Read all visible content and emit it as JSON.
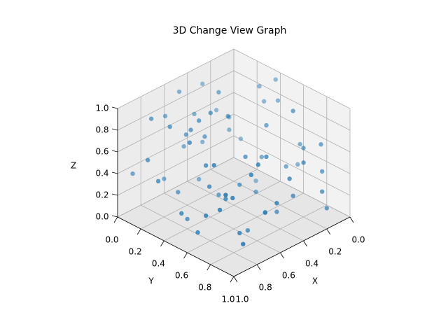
{
  "chart_data": {
    "type": "scatter3d",
    "title": "3D Change View Graph",
    "xlabel": "X",
    "ylabel": "Y",
    "zlabel": "Z",
    "xlim": [
      0,
      1
    ],
    "ylim": [
      0,
      1
    ],
    "zlim": [
      0,
      1
    ],
    "xticks": [
      {
        "value": 0,
        "label": "0.0"
      },
      {
        "value": 0.2,
        "label": "0.2"
      },
      {
        "value": 0.4,
        "label": "0.4"
      },
      {
        "value": 0.6,
        "label": "0.6"
      },
      {
        "value": 0.8,
        "label": "0.8"
      },
      {
        "value": 1,
        "label": "1.0"
      }
    ],
    "yticks": [
      {
        "value": 0,
        "label": "0.0"
      },
      {
        "value": 0.2,
        "label": "0.2"
      },
      {
        "value": 0.4,
        "label": "0.4"
      },
      {
        "value": 0.6,
        "label": "0.6"
      },
      {
        "value": 0.8,
        "label": "0.8"
      },
      {
        "value": 1,
        "label": "1.0"
      }
    ],
    "zticks": [
      {
        "value": 0,
        "label": "0.0"
      },
      {
        "value": 0.2,
        "label": "0.2"
      },
      {
        "value": 0.4,
        "label": "0.4"
      },
      {
        "value": 0.6,
        "label": "0.6"
      },
      {
        "value": 0.8,
        "label": "0.8"
      },
      {
        "value": 1,
        "label": "1.0"
      }
    ],
    "grid": true,
    "series": [
      {
        "color": "#1f77b4",
        "x": [
          0.12,
          0.85,
          0.33,
          0.56,
          0.91,
          0.07,
          0.44,
          0.68,
          0.22,
          0.79,
          0.5,
          0.15,
          0.63,
          0.95,
          0.3,
          0.72,
          0.05,
          0.41,
          0.87,
          0.26,
          0.58,
          0.1,
          0.76,
          0.35,
          0.93,
          0.48,
          0.19,
          0.66,
          0.82,
          0.02,
          0.53,
          0.38,
          0.71,
          0.24,
          0.97,
          0.46,
          0.14,
          0.61,
          0.89,
          0.31,
          0.75,
          0.08,
          0.55,
          0.42,
          0.84,
          0.18,
          0.67,
          0.27,
          0.94,
          0.51,
          0.36,
          0.78,
          0.11,
          0.6,
          0.88,
          0.21,
          0.45,
          0.7,
          0.04,
          0.98,
          0.39,
          0.64,
          0.16,
          0.81,
          0.29,
          0.57,
          0.92,
          0.47,
          0.73,
          0.13
        ],
        "y": [
          0.88,
          0.14,
          0.52,
          0.31,
          0.67,
          0.45,
          0.92,
          0.08,
          0.73,
          0.39,
          0.6,
          0.21,
          0.84,
          0.5,
          0.03,
          0.77,
          0.62,
          0.28,
          0.95,
          0.11,
          0.7,
          0.36,
          0.55,
          0.86,
          0.19,
          0.43,
          0.99,
          0.25,
          0.81,
          0.57,
          0.06,
          0.65,
          0.34,
          0.48,
          0.9,
          0.16,
          0.74,
          0.41,
          0.02,
          0.59,
          0.27,
          0.83,
          0.12,
          0.69,
          0.46,
          0.94,
          0.37,
          0.23,
          0.63,
          0.79,
          0.09,
          0.54,
          0.3,
          0.97,
          0.71,
          0.17,
          0.5,
          0.85,
          0.4,
          0.33,
          0.76,
          0.05,
          0.61,
          0.26,
          0.89,
          0.44,
          0.8,
          0.13,
          0.66,
          0.35
        ],
        "z": [
          0.42,
          0.9,
          0.15,
          0.67,
          0.33,
          0.81,
          0.55,
          0.22,
          0.95,
          0.08,
          0.61,
          0.37,
          0.74,
          0.28,
          0.86,
          0.12,
          0.49,
          0.98,
          0.2,
          0.64,
          0.03,
          0.77,
          0.45,
          0.31,
          0.59,
          0.88,
          0.18,
          0.71,
          0.52,
          0.26,
          0.93,
          0.06,
          0.83,
          0.4,
          0.68,
          0.14,
          0.57,
          0.97,
          0.35,
          0.79,
          0.24,
          0.62,
          0.47,
          0.1,
          0.85,
          0.3,
          0.91,
          0.53,
          0.17,
          0.72,
          0.39,
          0.65,
          0.01,
          0.44,
          0.8,
          0.58,
          0.27,
          0.69,
          0.96,
          0.5,
          0.13,
          0.76,
          0.34,
          0.87,
          0.6,
          0.21,
          0.46,
          0.73,
          0.38,
          0.92
        ]
      }
    ]
  }
}
